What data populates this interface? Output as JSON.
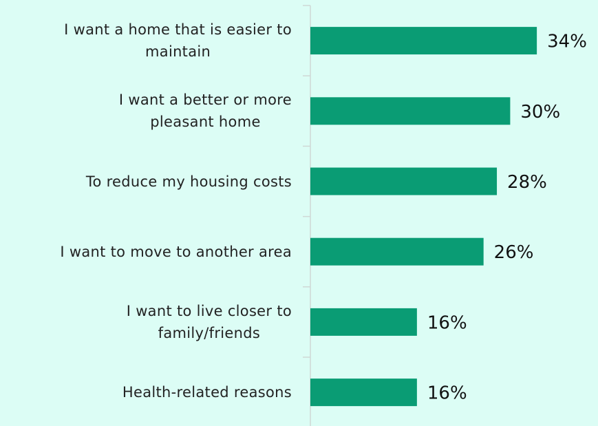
{
  "chart_data": {
    "type": "bar",
    "orientation": "horizontal",
    "categories": [
      "I want a home that is easier to\nmaintain",
      "I want a better or more\npleasant home",
      "To reduce my housing costs",
      "I want to move to another area",
      "I want to live closer to\nfamily/friends",
      "Health-related reasons"
    ],
    "values": [
      34,
      30,
      28,
      26,
      16,
      16
    ],
    "value_labels": [
      "34%",
      "30%",
      "28%",
      "26%",
      "16%",
      "16%"
    ],
    "color": "#0a9c74"
  }
}
